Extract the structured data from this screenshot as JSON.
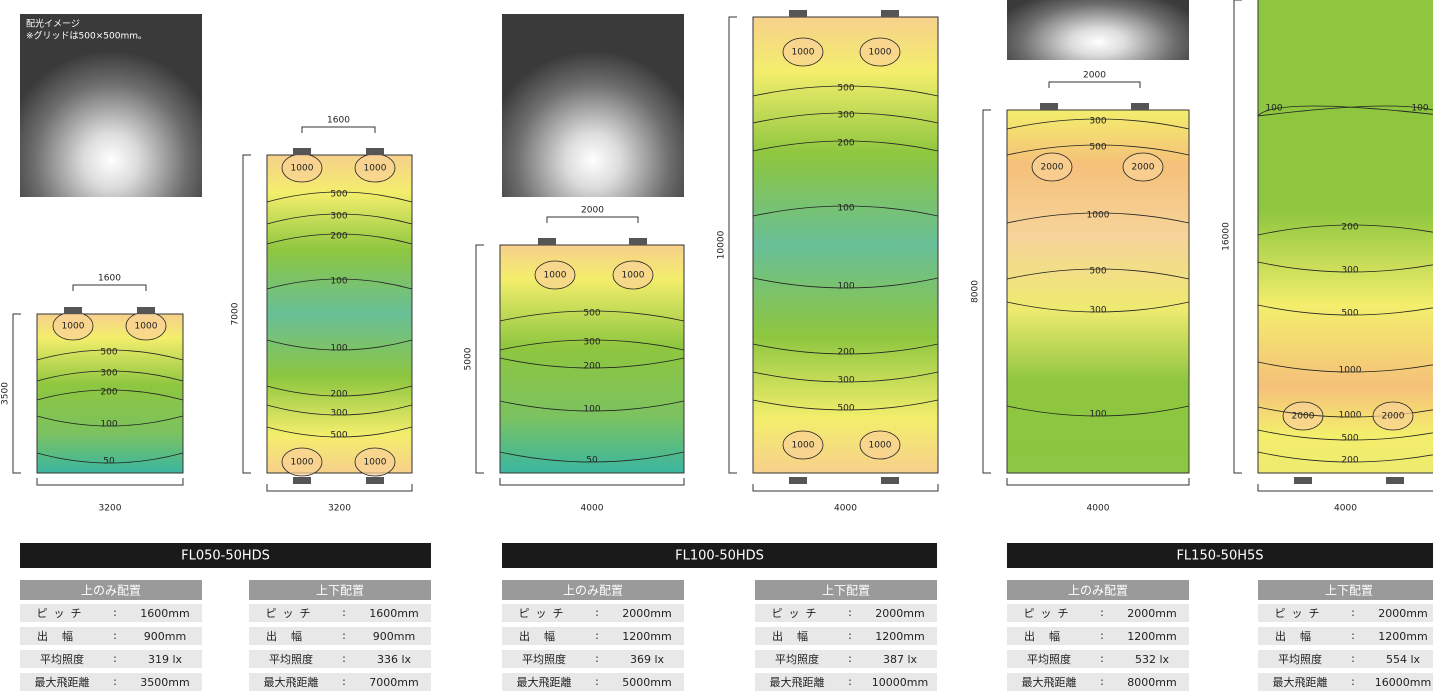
{
  "photo_caption": [
    "配光イメージ",
    "※グリッドは500×500mm。"
  ],
  "row_labels": [
    "ピッチ",
    "出幅",
    "平均照度",
    "最大飛距離"
  ],
  "separator": ":",
  "products": [
    {
      "name": "FL050-50HDS",
      "layouts": [
        {
          "title": "上のみ配置",
          "pitch": "1600",
          "height": "3500",
          "width": "3200",
          "contours": [
            "1000",
            "1000",
            "500",
            "300",
            "200",
            "100",
            "50"
          ],
          "specs": [
            "1600mm",
            "900mm",
            "319 lx",
            "3500mm"
          ]
        },
        {
          "title": "上下配置",
          "pitch": "1600",
          "height": "7000",
          "width": "3200",
          "contours": [
            "1000",
            "1000",
            "500",
            "300",
            "200",
            "100",
            "100",
            "200",
            "300",
            "500",
            "1000",
            "1000"
          ],
          "specs": [
            "1600mm",
            "900mm",
            "336 lx",
            "7000mm"
          ]
        }
      ]
    },
    {
      "name": "FL100-50HDS",
      "layouts": [
        {
          "title": "上のみ配置",
          "pitch": "2000",
          "height": "5000",
          "width": "4000",
          "contours": [
            "1000",
            "1000",
            "500",
            "300",
            "200",
            "100",
            "50"
          ],
          "specs": [
            "2000mm",
            "1200mm",
            "369 lx",
            "5000mm"
          ]
        },
        {
          "title": "上下配置",
          "height": "10000",
          "width": "4000",
          "contours": [
            "1000",
            "1000",
            "500",
            "300",
            "200",
            "100",
            "100",
            "200",
            "300",
            "500",
            "1000",
            "1000"
          ],
          "specs": [
            "2000mm",
            "1200mm",
            "387 lx",
            "10000mm"
          ]
        }
      ]
    },
    {
      "name": "FL150-50H5S",
      "layouts": [
        {
          "title": "上のみ配置",
          "pitch": "2000",
          "height": "8000",
          "width": "4000",
          "contours": [
            "300",
            "500",
            "2000",
            "2000",
            "1000",
            "500",
            "300",
            "100"
          ],
          "specs": [
            "2000mm",
            "1200mm",
            "532 lx",
            "8000mm"
          ]
        },
        {
          "title": "上下配置",
          "height": "16000",
          "width": "4000",
          "contours": [
            "100",
            "100",
            "200",
            "300",
            "500",
            "1000",
            "2000",
            "1000",
            "2000",
            "500",
            "200"
          ],
          "specs": [
            "2000mm",
            "1200mm",
            "554 lx",
            "16000mm"
          ]
        }
      ]
    }
  ]
}
